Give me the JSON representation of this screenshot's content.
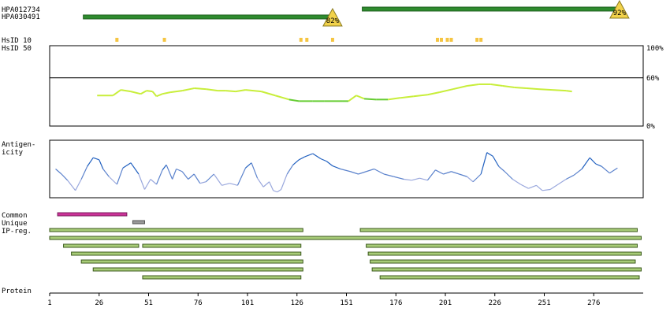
{
  "chart_data": {
    "type": "line",
    "protein_length": 292,
    "antibodies": [
      {
        "name": "HPA012734",
        "start": 159,
        "end": 289,
        "identity_label": "92%"
      },
      {
        "name": "HPA030491",
        "start": 18,
        "end": 144,
        "identity_label": "82%"
      }
    ],
    "hsid_rows": [
      {
        "label": "HsID 10",
        "positions": [
          35,
          59,
          128,
          131,
          144,
          197,
          199,
          202,
          204,
          217,
          219
        ]
      },
      {
        "label": "HsID 50",
        "positions": []
      }
    ],
    "identity_axis": {
      "ticks": [
        "100%",
        "60%",
        "0%"
      ],
      "ylim": [
        0,
        100
      ],
      "reference_line": 60
    },
    "identity_series": {
      "x": [
        25,
        33,
        37,
        42,
        47,
        50,
        53,
        55,
        58,
        62,
        68,
        74,
        80,
        86,
        90,
        95,
        100,
        108,
        115,
        122,
        127,
        134,
        140,
        149,
        152,
        156,
        160,
        166,
        172,
        178,
        185,
        192,
        198,
        205,
        212,
        218,
        224,
        230,
        236,
        242,
        248,
        255,
        262,
        265
      ],
      "y": [
        38,
        38,
        45,
        43,
        40,
        44,
        43,
        37,
        40,
        42,
        44,
        47,
        46,
        44,
        44,
        43,
        45,
        43,
        38,
        33,
        31,
        31,
        31,
        31,
        31,
        38,
        34,
        33,
        33,
        35,
        37,
        39,
        42,
        46,
        50,
        52,
        52,
        50,
        48,
        47,
        46,
        45,
        44,
        43
      ]
    },
    "antigenicity_label": "Antigen-\nicity",
    "antigenicity_series": {
      "x": [
        4,
        7,
        10,
        14,
        17,
        20,
        23,
        26,
        28,
        31,
        35,
        38,
        42,
        46,
        49,
        52,
        55,
        58,
        60,
        63,
        65,
        68,
        71,
        74,
        77,
        80,
        84,
        88,
        92,
        96,
        100,
        103,
        106,
        109,
        112,
        114,
        116,
        118,
        121,
        124,
        127,
        130,
        134,
        138,
        141,
        144,
        148,
        153,
        157,
        161,
        165,
        170,
        175,
        180,
        184,
        188,
        192,
        196,
        200,
        204,
        208,
        212,
        215,
        219,
        222,
        225,
        228,
        231,
        235,
        239,
        243,
        247,
        250,
        254,
        258,
        262,
        266,
        270,
        274,
        277,
        280,
        284,
        288
      ],
      "y": [
        50,
        40,
        28,
        8,
        30,
        55,
        72,
        68,
        50,
        35,
        20,
        52,
        62,
        40,
        10,
        30,
        20,
        48,
        58,
        30,
        50,
        45,
        30,
        40,
        22,
        25,
        40,
        18,
        22,
        18,
        52,
        62,
        32,
        15,
        25,
        8,
        5,
        10,
        40,
        58,
        68,
        74,
        80,
        70,
        65,
        56,
        50,
        45,
        40,
        45,
        50,
        40,
        35,
        30,
        28,
        32,
        28,
        48,
        40,
        45,
        40,
        35,
        25,
        40,
        82,
        75,
        55,
        45,
        30,
        20,
        12,
        18,
        8,
        10,
        20,
        30,
        38,
        50,
        72,
        60,
        55,
        42,
        52
      ]
    },
    "bottom_labels": [
      "Common",
      "Unique",
      "IP-reg."
    ],
    "common_segment": {
      "start": 5,
      "end": 40,
      "color": "#cc3399"
    },
    "unique_segment": {
      "start": 43,
      "end": 49,
      "color": "#999999"
    },
    "ip_reg_bars": [
      {
        "start": 1,
        "end": 129
      },
      {
        "start": 158,
        "end": 298
      },
      {
        "start": 1,
        "end": 300
      },
      {
        "start": 8,
        "end": 46
      },
      {
        "start": 48,
        "end": 128
      },
      {
        "start": 161,
        "end": 298
      },
      {
        "start": 12,
        "end": 128
      },
      {
        "start": 162,
        "end": 300
      },
      {
        "start": 17,
        "end": 129
      },
      {
        "start": 163,
        "end": 297
      },
      {
        "start": 23,
        "end": 129
      },
      {
        "start": 164,
        "end": 300
      },
      {
        "start": 48,
        "end": 128
      },
      {
        "start": 168,
        "end": 299
      }
    ],
    "protein_axis": {
      "label": "Protein",
      "ticks": [
        "1",
        "26",
        "51",
        "76",
        "101",
        "126",
        "151",
        "176",
        "201",
        "226",
        "251",
        "276"
      ]
    }
  }
}
